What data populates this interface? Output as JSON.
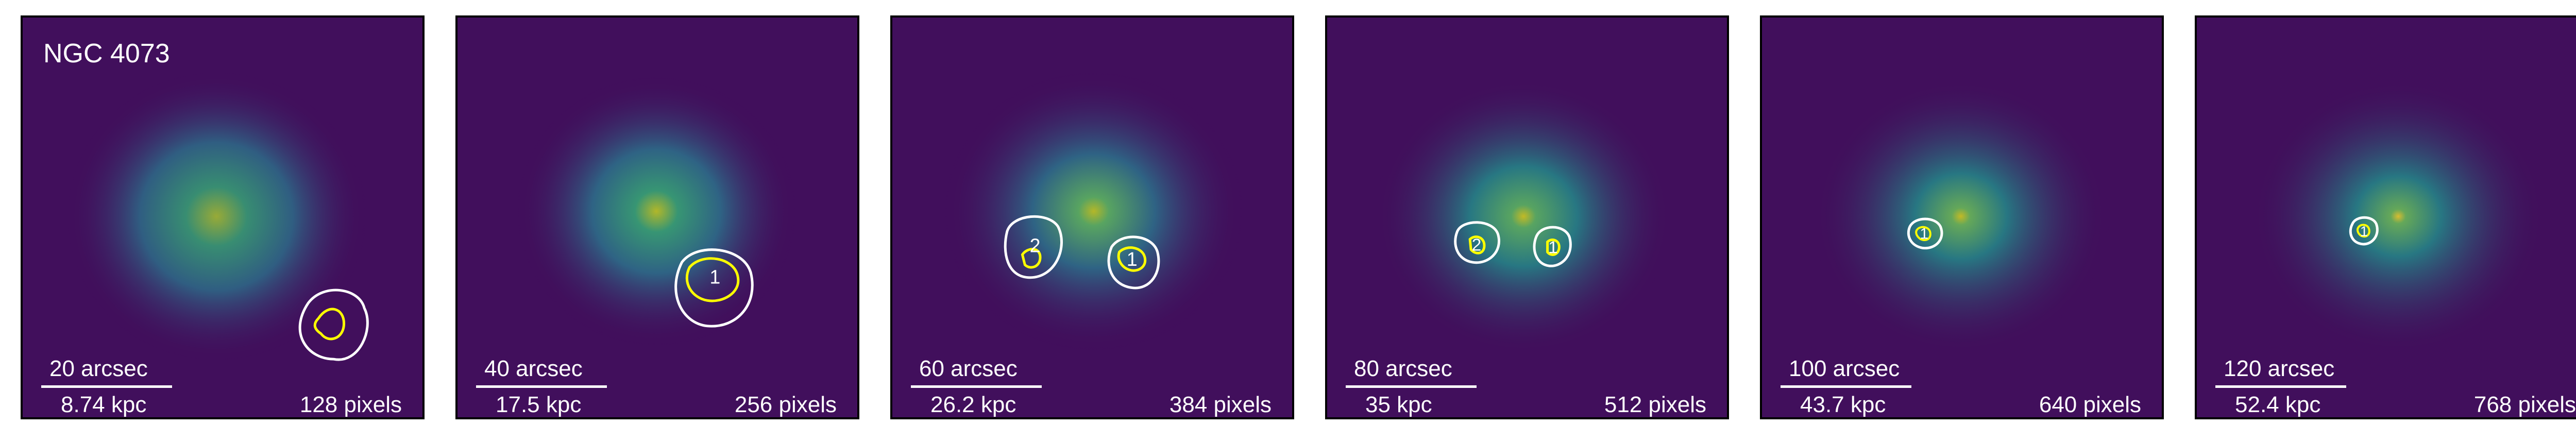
{
  "colors": {
    "background": "#440154",
    "mid": "#31688e",
    "core": "#b5de2b",
    "contour_outer": "#ffffff",
    "contour_inner": "#ffff00",
    "label": "#ffffff"
  },
  "panels": [
    {
      "galaxy": "NGC 4073",
      "arcsec": "20 arcsec",
      "kpc": "8.74 kpc",
      "pixels": "128 pixels",
      "regions": [
        {
          "id": ""
        }
      ]
    },
    {
      "galaxy": "",
      "arcsec": "40 arcsec",
      "kpc": "17.5 kpc",
      "pixels": "256 pixels",
      "regions": [
        {
          "id": "1"
        }
      ]
    },
    {
      "galaxy": "",
      "arcsec": "60 arcsec",
      "kpc": "26.2 kpc",
      "pixels": "384 pixels",
      "regions": [
        {
          "id": "2"
        },
        {
          "id": "1"
        }
      ]
    },
    {
      "galaxy": "",
      "arcsec": "80 arcsec",
      "kpc": "35 kpc",
      "pixels": "512 pixels",
      "regions": [
        {
          "id": "2"
        },
        {
          "id": "1"
        }
      ]
    },
    {
      "galaxy": "",
      "arcsec": "100 arcsec",
      "kpc": "43.7 kpc",
      "pixels": "640 pixels",
      "regions": [
        {
          "id": "1"
        }
      ]
    },
    {
      "galaxy": "",
      "arcsec": "120 arcsec",
      "kpc": "52.4 kpc",
      "pixels": "768 pixels",
      "regions": [
        {
          "id": "1"
        }
      ]
    }
  ]
}
